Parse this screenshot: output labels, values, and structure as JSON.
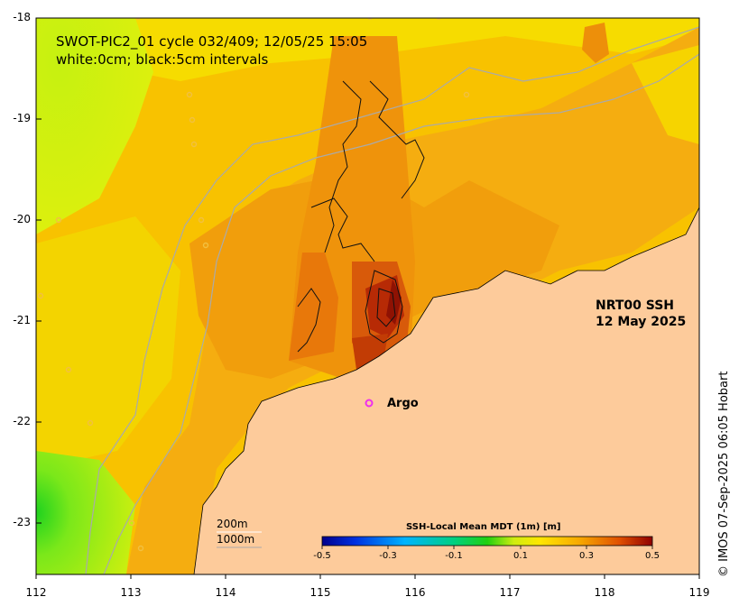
{
  "title": {
    "line1": "SWOT-PIC2_01 cycle 032/409; 12/05/25 15:05",
    "line2": "white:0cm; black:5cm intervals"
  },
  "product": {
    "line1": "NRT00 SSH",
    "line2": "12 May 2025"
  },
  "argo_label": "Argo",
  "scale_bar": {
    "depth1": "200m",
    "depth2": "1000m"
  },
  "colorbar": {
    "title": "SSH-Local Mean MDT (1m) [m]",
    "ticks": [
      "-0.5",
      "-0.3",
      "-0.1",
      "0.1",
      "0.3",
      "0.5"
    ]
  },
  "credit": "© IMOS 07-Sep-2025 06:05 Hobart",
  "axes": {
    "lat_ticks": [
      "-18",
      "-19",
      "-20",
      "-21",
      "-22",
      "-23"
    ],
    "lon_ticks": [
      "112",
      "113",
      "114",
      "115",
      "116",
      "117",
      "118",
      "119"
    ]
  },
  "colors": {
    "land": "#fdcb9b",
    "warm": "#f4a70a",
    "cool": "#7fe61a",
    "marker": "#ee2fee"
  }
}
